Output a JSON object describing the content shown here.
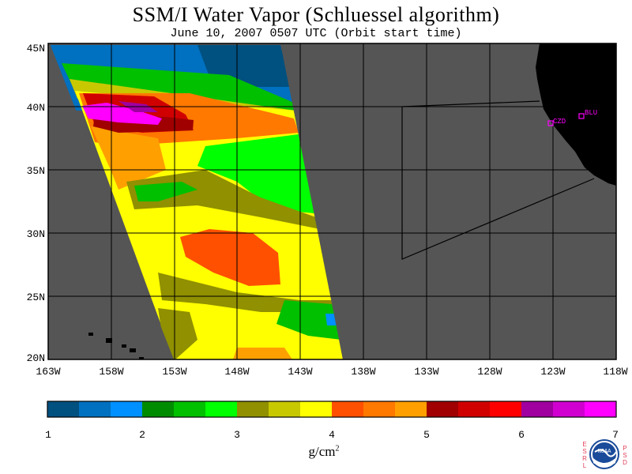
{
  "title": "SSM/I Water Vapor (Schluessel algorithm)",
  "subtitle": "June 10, 2007  0507 UTC  (Orbit start time)",
  "map": {
    "ocean_color": "#555555",
    "land_color": "#000000",
    "grid_color": "#000000",
    "lat_labels": [
      "45N",
      "40N",
      "35N",
      "30N",
      "25N",
      "20N"
    ],
    "lon_labels": [
      "163W",
      "158W",
      "153W",
      "148W",
      "143W",
      "138W",
      "133W",
      "128W",
      "123W",
      "118W"
    ],
    "stations": [
      {
        "label": "CZD",
        "color": "#ff00ff"
      },
      {
        "label": "BLU",
        "color": "#ff00ff"
      }
    ]
  },
  "colorbar": {
    "tick_labels": [
      "1",
      "2",
      "3",
      "4",
      "5",
      "6",
      "7"
    ],
    "units": "g/cm",
    "units_exp": "2",
    "colors": [
      "#005080",
      "#0070c0",
      "#0090ff",
      "#008c00",
      "#00c000",
      "#00ff00",
      "#909000",
      "#c8c800",
      "#ffff00",
      "#ff5000",
      "#ff7800",
      "#ffa000",
      "#a00000",
      "#d00000",
      "#ff0000",
      "#a000a0",
      "#d000d0",
      "#ff00ff"
    ]
  },
  "logo": {
    "left_letters": [
      "E",
      "S",
      "R",
      "L"
    ],
    "right_letters": [
      "P",
      "S",
      "D"
    ],
    "center_text": "NOAA"
  }
}
